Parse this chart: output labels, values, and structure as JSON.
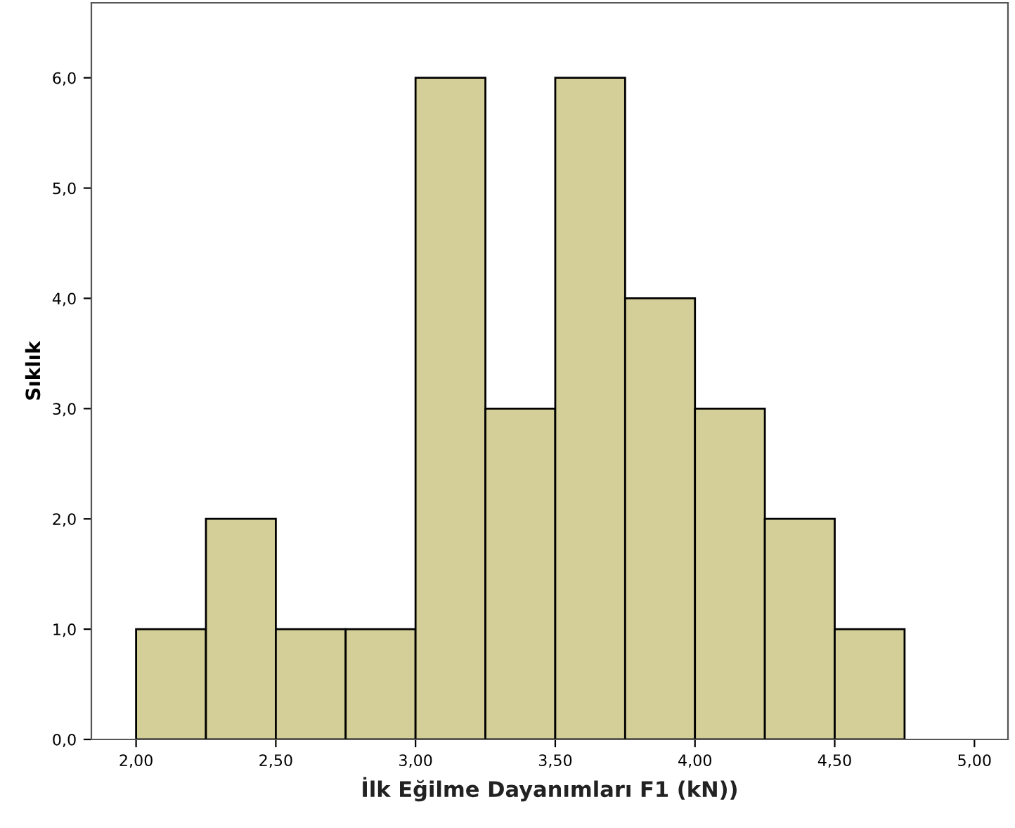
{
  "chart_data": {
    "type": "histogram",
    "xlabel": "İlk Eğilme Dayanımları F1 (kN))",
    "ylabel": "Sıklık",
    "bins": [
      2.0,
      2.25,
      2.5,
      2.75,
      3.0,
      3.25,
      3.5,
      3.75,
      4.0,
      4.25,
      4.5,
      4.75
    ],
    "values": [
      1,
      2,
      1,
      1,
      6,
      3,
      6,
      4,
      3,
      2,
      1
    ],
    "color": "#d4cf98",
    "xlim": [
      1.84,
      5.12
    ],
    "ylim": [
      0,
      6.68
    ],
    "xticks": [
      {
        "value": 2.0,
        "label": "2,00"
      },
      {
        "value": 2.5,
        "label": "2,50"
      },
      {
        "value": 3.0,
        "label": "3,00"
      },
      {
        "value": 3.5,
        "label": "3,50"
      },
      {
        "value": 4.0,
        "label": "4,00"
      },
      {
        "value": 4.5,
        "label": "4,50"
      },
      {
        "value": 5.0,
        "label": "5,00"
      }
    ],
    "yticks": [
      {
        "value": 0,
        "label": "0,0"
      },
      {
        "value": 1,
        "label": "1,0"
      },
      {
        "value": 2,
        "label": "2,0"
      },
      {
        "value": 3,
        "label": "3,0"
      },
      {
        "value": 4,
        "label": "4,0"
      },
      {
        "value": 5,
        "label": "5,0"
      },
      {
        "value": 6,
        "label": "6,0"
      }
    ],
    "grid": false
  }
}
